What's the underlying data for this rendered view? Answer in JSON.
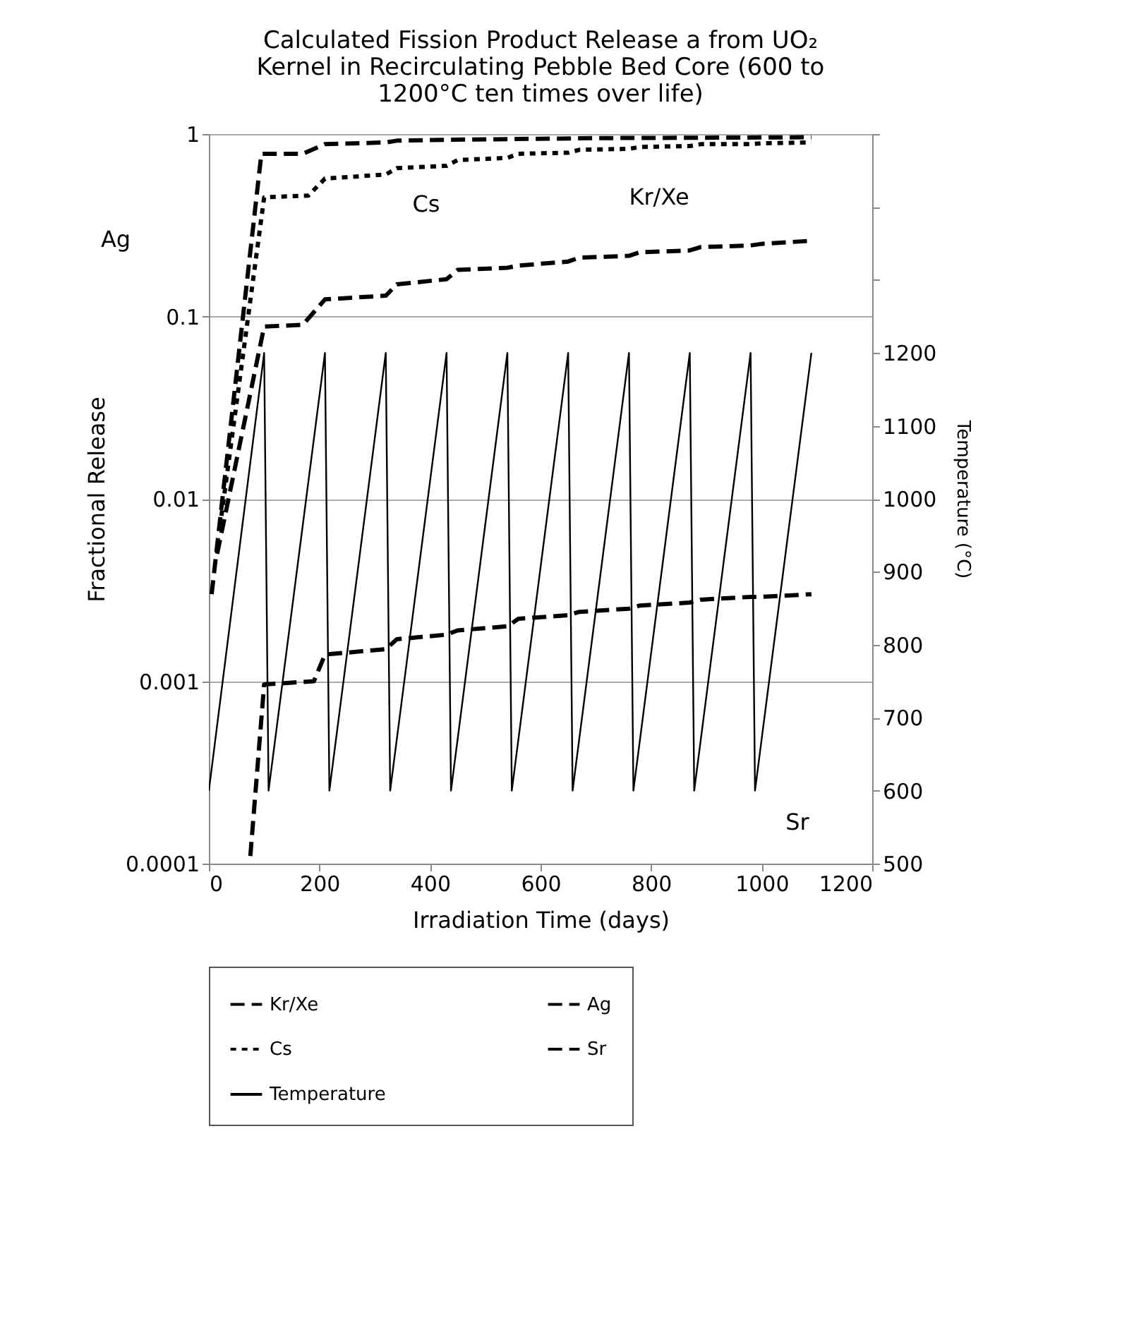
{
  "chart_data": {
    "type": "line",
    "title": "Calculated Fission Product Release a from UO₂\nKernel in  Recirculating Pebble Bed Core (600 to\n1200°C ten times over life)",
    "xlabel": "Irradiation Time (days)",
    "ylabel": "Fractional Release",
    "y2label": "Temperature (°C)",
    "xlim": [
      0,
      1200
    ],
    "xticks": [
      0,
      200,
      400,
      600,
      800,
      {
        "value": 1000,
        "label": "1000"
      },
      {
        "value": 1200,
        "label": "1200"
      }
    ],
    "ylim": [
      0.0001,
      1
    ],
    "yticks": [
      {
        "value": 0.0001,
        "label": "0.0001"
      },
      {
        "value": 0.001,
        "label": "0.001"
      },
      {
        "value": 0.01,
        "label": "0.01"
      },
      {
        "value": 0.1,
        "label": "0.1"
      },
      {
        "value": 1,
        "label": "1"
      }
    ],
    "y2lim": [
      500,
      1500
    ],
    "y2ticks": [
      500,
      600,
      700,
      800,
      900,
      1000,
      1100,
      1200,
      {
        "value": 1300,
        "label": null
      },
      {
        "value": 1400,
        "label": null
      },
      {
        "value": 1500,
        "label": null
      }
    ],
    "log": "y",
    "grid": "y",
    "legend": "bottom",
    "series": [
      {
        "name": "Kr/Xe",
        "color": "#000000",
        "line_style": "dashed",
        "x": [
          15,
          100,
          170,
          210,
          320,
          340,
          430,
          450,
          540,
          560,
          650,
          670,
          760,
          780,
          870,
          890,
          980,
          1000,
          1090
        ],
        "values": [
          0.005,
          0.088,
          0.09,
          0.124,
          0.13,
          0.15,
          0.16,
          0.18,
          0.185,
          0.19,
          0.2,
          0.21,
          0.215,
          0.225,
          0.23,
          0.24,
          0.245,
          0.25,
          0.26
        ]
      },
      {
        "name": "Ag",
        "color": "#000000",
        "line_style": "dashed",
        "x": [
          5,
          95,
          170,
          210,
          320,
          340,
          430,
          700,
          1090
        ],
        "values": [
          0.003,
          0.78,
          0.78,
          0.88,
          0.9,
          0.92,
          0.93,
          0.95,
          0.96
        ]
      },
      {
        "name": "Cs",
        "color": "#000000",
        "line_style": "dotted",
        "x": [
          20,
          100,
          180,
          210,
          320,
          340,
          430,
          450,
          540,
          560,
          650,
          670,
          760,
          780,
          870,
          890,
          980,
          1000,
          1090
        ],
        "values": [
          0.007,
          0.45,
          0.46,
          0.57,
          0.6,
          0.65,
          0.67,
          0.72,
          0.74,
          0.78,
          0.79,
          0.82,
          0.83,
          0.85,
          0.86,
          0.88,
          0.88,
          0.89,
          0.9
        ]
      },
      {
        "name": "Sr",
        "color": "#000000",
        "line_style": "dashed",
        "x": [
          75,
          100,
          190,
          210,
          320,
          340,
          430,
          450,
          540,
          560,
          650,
          670,
          760,
          780,
          870,
          890,
          980,
          1000,
          1090
        ],
        "values": [
          0.00011,
          0.00096,
          0.001,
          0.0014,
          0.0015,
          0.0017,
          0.0018,
          0.0019,
          0.002,
          0.0022,
          0.0023,
          0.0024,
          0.0025,
          0.0026,
          0.0027,
          0.0028,
          0.0029,
          0.0029,
          0.003
        ]
      },
      {
        "name": "Temperature",
        "color": "#000000",
        "line_style": "solid",
        "axis": "y2",
        "x": [
          0,
          100,
          108,
          210,
          218,
          320,
          328,
          430,
          438,
          540,
          548,
          650,
          658,
          760,
          768,
          870,
          878,
          980,
          988,
          1090
        ],
        "values": [
          600,
          1200,
          600,
          1200,
          600,
          1200,
          600,
          1200,
          600,
          1200,
          600,
          1200,
          600,
          1200,
          600,
          1200,
          600,
          1200,
          600,
          1200
        ]
      }
    ],
    "annotations": [
      "Ag",
      "Cs",
      "Kr/Xe",
      "Sr"
    ]
  }
}
